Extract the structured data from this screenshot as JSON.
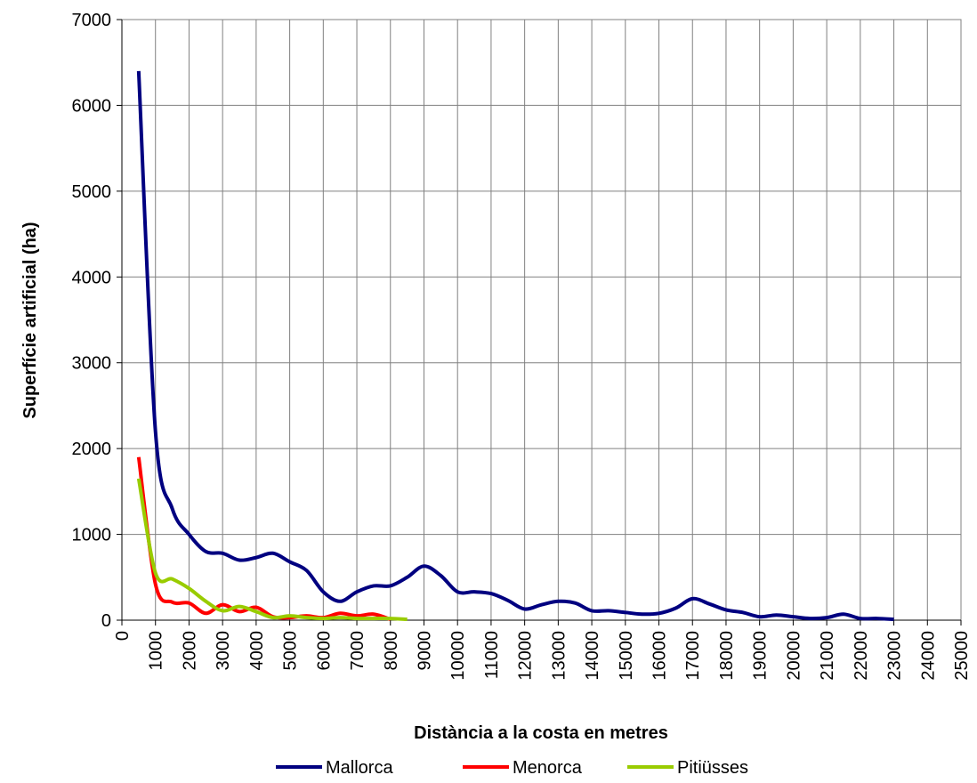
{
  "chart_data": {
    "type": "line",
    "xlabel": "Distància a la costa en metres",
    "ylabel": "Superfície artificial (ha)",
    "xlim": [
      0,
      25000
    ],
    "xticks": [
      0,
      1000,
      2000,
      3000,
      4000,
      5000,
      6000,
      7000,
      8000,
      9000,
      10000,
      11000,
      12000,
      13000,
      14000,
      15000,
      16000,
      17000,
      18000,
      19000,
      20000,
      21000,
      22000,
      23000,
      24000,
      25000
    ],
    "ylim": [
      0,
      7000
    ],
    "yticks": [
      0,
      1000,
      2000,
      3000,
      4000,
      5000,
      6000,
      7000
    ],
    "grid": true,
    "legend": "bottom",
    "series": [
      {
        "name": "Mallorca",
        "color": "#000080",
        "x": [
          500,
          1000,
          1500,
          2000,
          2500,
          3000,
          3500,
          4000,
          4500,
          5000,
          5500,
          6000,
          6500,
          7000,
          7500,
          8000,
          8500,
          9000,
          9500,
          10000,
          10500,
          11000,
          11500,
          12000,
          12500,
          13000,
          13500,
          14000,
          14500,
          15000,
          15500,
          16000,
          16500,
          17000,
          17500,
          18000,
          18500,
          19000,
          19500,
          20000,
          20500,
          21000,
          21500,
          22000,
          22500,
          23000
        ],
        "values": [
          6400,
          2200,
          1300,
          1000,
          800,
          780,
          700,
          730,
          780,
          680,
          580,
          330,
          220,
          330,
          400,
          400,
          500,
          630,
          520,
          330,
          330,
          310,
          230,
          130,
          180,
          220,
          200,
          110,
          110,
          90,
          70,
          80,
          140,
          250,
          190,
          120,
          90,
          40,
          60,
          40,
          20,
          30,
          70,
          20,
          20,
          10
        ]
      },
      {
        "name": "Menorca",
        "color": "#ff0000",
        "x": [
          500,
          1000,
          1500,
          2000,
          2500,
          3000,
          3500,
          4000,
          4500,
          5000,
          5500,
          6000,
          6500,
          7000,
          7500,
          8000
        ],
        "values": [
          1900,
          420,
          210,
          200,
          80,
          180,
          100,
          150,
          40,
          30,
          50,
          30,
          80,
          50,
          70,
          10
        ]
      },
      {
        "name": "Pitiüsses",
        "color": "#99cc00",
        "x": [
          500,
          1000,
          1500,
          2000,
          2500,
          3000,
          3500,
          4000,
          4500,
          5000,
          5500,
          6000,
          6500,
          7000,
          7500,
          8000,
          8500
        ],
        "values": [
          1650,
          550,
          480,
          370,
          220,
          110,
          160,
          100,
          30,
          50,
          30,
          20,
          30,
          20,
          20,
          20,
          10
        ]
      }
    ]
  }
}
